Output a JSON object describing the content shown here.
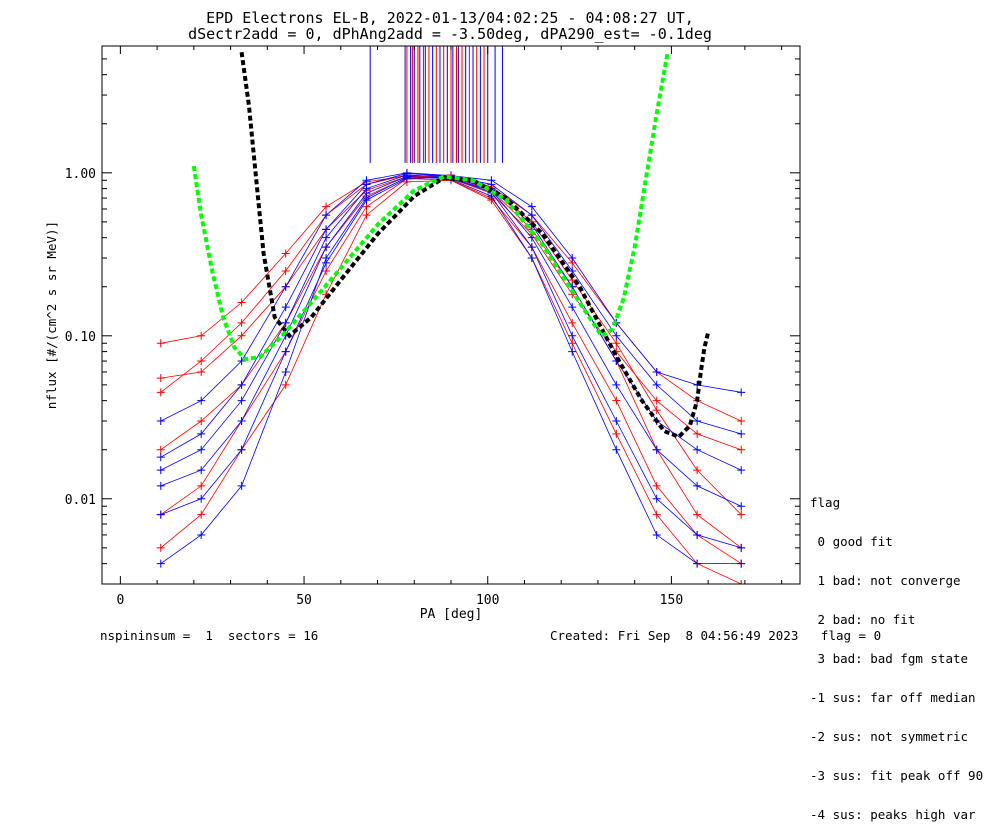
{
  "title_line1": "EPD Electrons EL-B, 2022-01-13/04:02:25 - 04:08:27 UT,",
  "title_line2": "dSectr2add = 0, dPhAng2add = -3.50deg, dPA290_est=  -0.1deg",
  "footer_left": "nspininsum =  1  sectors = 16",
  "footer_right": "Created: Fri Sep  8 04:56:49 2023   flag = 0",
  "legend": {
    "title": "flag",
    "items": [
      " 0 good fit",
      " 1 bad: not converge",
      " 2 bad: no fit",
      " 3 bad: bad fgm state",
      "-1 sus: far off median",
      "-2 sus: not symmetric",
      "-3 sus: fit peak off 90",
      "-4 sus: peaks high var"
    ]
  },
  "colors": {
    "red": "#ff0000",
    "blue": "#0000ff",
    "black": "#000000",
    "green": "#00ff00"
  },
  "chart_data": {
    "type": "line",
    "xlabel": "PA [deg]",
    "ylabel": "nflux [#/(cm^2 s sr MeV)]",
    "xlim": [
      -5,
      185
    ],
    "ylim": [
      0.003,
      6.0
    ],
    "yscale": "log",
    "xticks": [
      0,
      50,
      100,
      150
    ],
    "xtick_labels": [
      "0",
      "50",
      "100",
      "150"
    ],
    "yticks": [
      0.01,
      0.1,
      1.0
    ],
    "ytick_labels": [
      "0.01",
      "0.10",
      "1.00"
    ],
    "pa_bins": [
      11,
      22,
      33,
      45,
      56,
      67,
      78,
      90,
      101,
      112,
      123,
      135,
      146,
      157,
      169
    ],
    "series": [
      {
        "color": "red",
        "values": [
          0.045,
          0.07,
          0.12,
          0.25,
          0.55,
          0.85,
          0.97,
          0.93,
          0.8,
          0.5,
          0.22,
          0.09,
          0.035,
          0.015,
          0.008
        ]
      },
      {
        "color": "red",
        "values": [
          0.09,
          0.1,
          0.16,
          0.32,
          0.62,
          0.88,
          0.96,
          0.92,
          0.75,
          0.42,
          0.18,
          0.08,
          0.04,
          0.025,
          0.02
        ]
      },
      {
        "color": "red",
        "values": [
          0.02,
          0.03,
          0.05,
          0.12,
          0.35,
          0.72,
          0.93,
          0.9,
          0.7,
          0.35,
          0.12,
          0.04,
          0.012,
          0.006,
          0.004
        ]
      },
      {
        "color": "red",
        "values": [
          0.008,
          0.012,
          0.03,
          0.08,
          0.25,
          0.62,
          0.92,
          0.95,
          0.78,
          0.45,
          0.2,
          0.07,
          0.02,
          0.008,
          0.005
        ]
      },
      {
        "color": "red",
        "values": [
          0.055,
          0.06,
          0.1,
          0.2,
          0.45,
          0.78,
          0.95,
          0.97,
          0.82,
          0.55,
          0.28,
          0.12,
          0.06,
          0.04,
          0.03
        ]
      },
      {
        "color": "red",
        "values": [
          0.005,
          0.008,
          0.02,
          0.05,
          0.18,
          0.55,
          0.88,
          0.9,
          0.68,
          0.3,
          0.09,
          0.025,
          0.008,
          0.004,
          0.003
        ]
      },
      {
        "color": "blue",
        "values": [
          0.012,
          0.015,
          0.03,
          0.1,
          0.35,
          0.75,
          0.95,
          0.92,
          0.78,
          0.4,
          0.15,
          0.05,
          0.02,
          0.012,
          0.009
        ]
      },
      {
        "color": "blue",
        "values": [
          0.004,
          0.006,
          0.012,
          0.06,
          0.3,
          0.7,
          0.94,
          0.93,
          0.76,
          0.35,
          0.1,
          0.03,
          0.01,
          0.006,
          0.005
        ]
      },
      {
        "color": "blue",
        "values": [
          0.018,
          0.025,
          0.05,
          0.15,
          0.45,
          0.85,
          0.99,
          0.95,
          0.85,
          0.55,
          0.25,
          0.1,
          0.05,
          0.03,
          0.025
        ]
      },
      {
        "color": "blue",
        "values": [
          0.03,
          0.04,
          0.07,
          0.2,
          0.55,
          0.9,
          1.0,
          0.96,
          0.9,
          0.62,
          0.3,
          0.12,
          0.06,
          0.05,
          0.045
        ]
      },
      {
        "color": "blue",
        "values": [
          0.008,
          0.01,
          0.02,
          0.08,
          0.28,
          0.68,
          0.92,
          0.91,
          0.72,
          0.3,
          0.08,
          0.02,
          0.006,
          0.004,
          0.004
        ]
      },
      {
        "color": "blue",
        "values": [
          0.015,
          0.02,
          0.04,
          0.12,
          0.4,
          0.8,
          0.97,
          0.94,
          0.8,
          0.48,
          0.2,
          0.07,
          0.03,
          0.02,
          0.015
        ]
      }
    ],
    "black_dotted_curve": {
      "x": [
        33,
        35,
        37,
        39,
        42,
        46,
        52,
        60,
        70,
        80,
        88,
        96,
        105,
        115,
        125,
        135,
        142,
        148,
        152,
        155,
        157,
        158,
        159,
        160
      ],
      "y": [
        5.5,
        2.6,
        0.9,
        0.32,
        0.13,
        0.1,
        0.13,
        0.22,
        0.42,
        0.72,
        0.93,
        0.9,
        0.7,
        0.42,
        0.2,
        0.075,
        0.04,
        0.026,
        0.024,
        0.028,
        0.04,
        0.06,
        0.085,
        0.105
      ]
    },
    "green_dotted_curve": {
      "x": [
        20,
        22,
        25,
        28,
        31,
        34,
        38,
        44,
        52,
        60,
        70,
        80,
        88,
        96,
        105,
        115,
        125,
        131,
        134,
        137,
        140,
        143,
        146,
        149
      ],
      "y": [
        1.1,
        0.55,
        0.25,
        0.13,
        0.085,
        0.072,
        0.074,
        0.1,
        0.16,
        0.26,
        0.48,
        0.78,
        0.95,
        0.9,
        0.68,
        0.36,
        0.16,
        0.1,
        0.11,
        0.17,
        0.35,
        0.9,
        2.3,
        5.5
      ]
    },
    "vertical_ticks": {
      "y_bottom": 1.15,
      "red_x": [
        78,
        79.5,
        81,
        82.5,
        84,
        86,
        88,
        90,
        91.5,
        93,
        95,
        97,
        99
      ],
      "blue_x": [
        68,
        77.5,
        79,
        80,
        81.5,
        83,
        85,
        87,
        89,
        90.5,
        92,
        94,
        96,
        98,
        100,
        102,
        104
      ]
    }
  }
}
